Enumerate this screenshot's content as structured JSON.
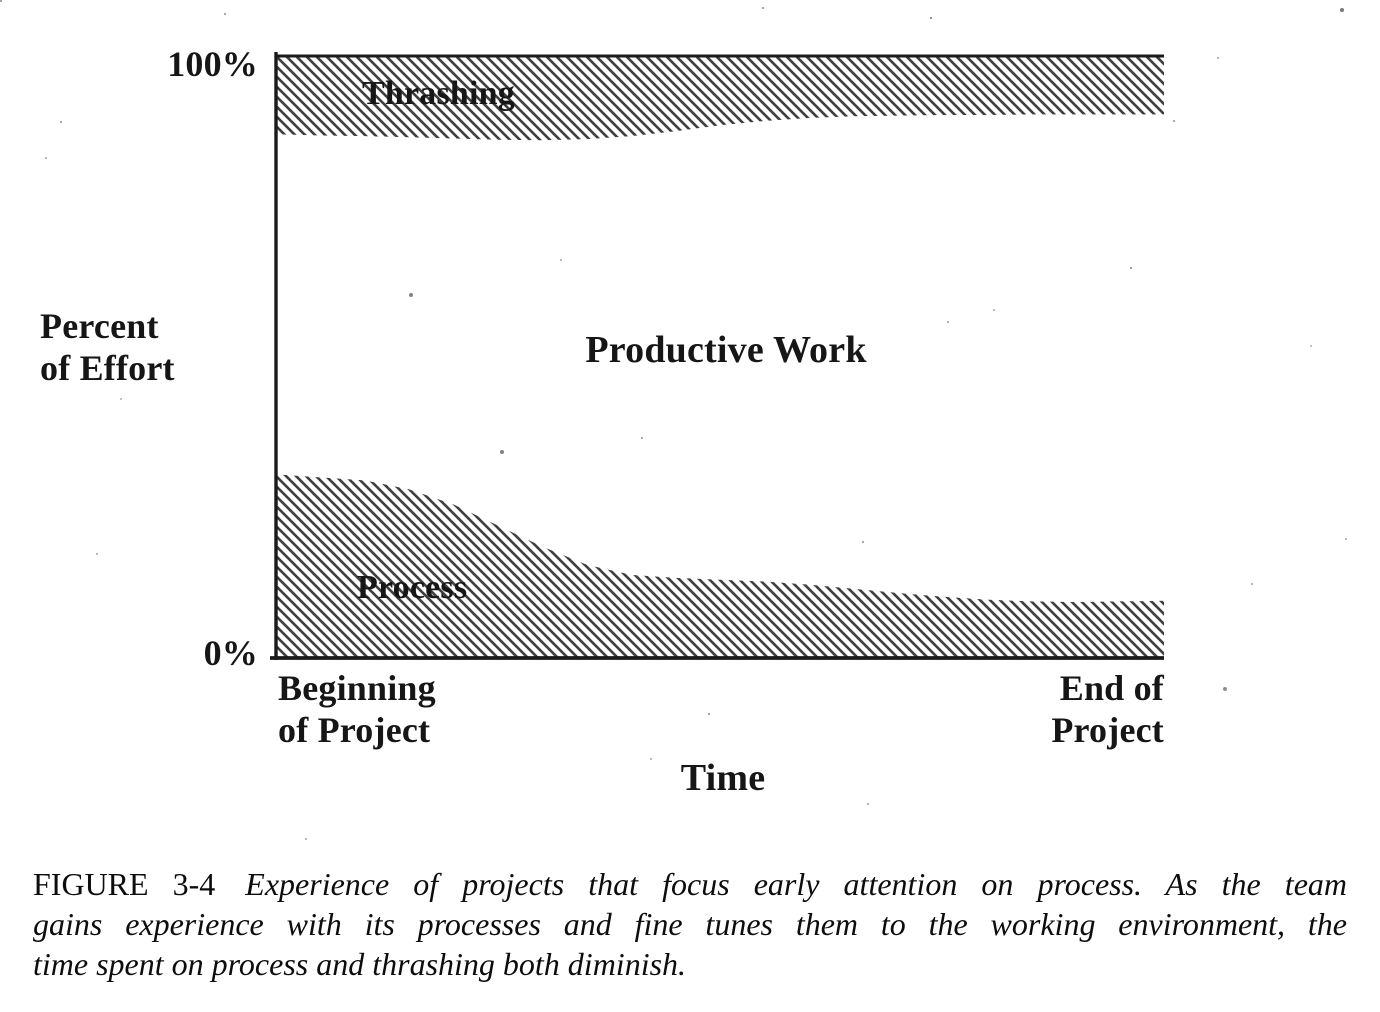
{
  "figure": {
    "y_axis_top_tick": "100%",
    "y_axis_bottom_tick": "0%",
    "y_axis_title": "Percent\nof Effort",
    "x_axis_start_label": "Beginning\nof Project",
    "x_axis_end_label": "End of\nProject",
    "x_axis_title": "Time",
    "band_labels": {
      "top": "Thrashing",
      "middle": "Productive Work",
      "bottom": "Process"
    }
  },
  "caption": {
    "figure_label": "FIGURE 3-4",
    "line1": "Experience of projects that focus early attention on process. As the team",
    "line2": "gains experience with its processes and fine tunes them to the working environment, the",
    "line3": "time spent on process and thrashing both diminish."
  },
  "chart_data": {
    "type": "area",
    "title": "",
    "xlabel": "Time",
    "ylabel": "Percent of Effort",
    "x_range_labels": [
      "Beginning of Project",
      "End of Project"
    ],
    "ylim": [
      0,
      100
    ],
    "y_tick_labels": [
      "0%",
      "100%"
    ],
    "stacked": true,
    "grid": false,
    "legend": "labels drawn inside bands",
    "hatch_style": "diagonal-backslash",
    "ink_color": "#1c1c1c",
    "x": [
      0,
      0.05,
      0.1,
      0.15,
      0.2,
      0.25,
      0.3,
      0.35,
      0.4,
      0.45,
      0.5,
      0.55,
      0.6,
      0.65,
      0.7,
      0.75,
      0.8,
      0.85,
      0.9,
      0.95,
      1
    ],
    "series": [
      {
        "name": "Process",
        "band": "bottom",
        "values": [
          30.5,
          30,
          29.5,
          28,
          25.5,
          22,
          18.5,
          15.5,
          13.8,
          13.3,
          13,
          12.7,
          12.2,
          11.5,
          10.8,
          10.2,
          9.7,
          9.4,
          9.3,
          9.4,
          9.5
        ]
      },
      {
        "name": "Thrashing",
        "band": "top",
        "values": [
          13,
          13.2,
          13.3,
          13.5,
          13.7,
          13.9,
          14,
          13.8,
          13.3,
          12.5,
          11.5,
          10.8,
          10.3,
          10,
          9.9,
          9.8,
          9.8,
          9.7,
          9.7,
          9.7,
          9.7
        ]
      },
      {
        "name": "Productive Work",
        "band": "middle",
        "values": [
          56.5,
          56.8,
          57.2,
          58.5,
          60.8,
          64.1,
          67.5,
          70.7,
          72.9,
          74.2,
          75.5,
          76.5,
          77.5,
          78.5,
          79.3,
          80,
          80.5,
          80.9,
          81,
          80.9,
          80.8
        ]
      }
    ]
  }
}
